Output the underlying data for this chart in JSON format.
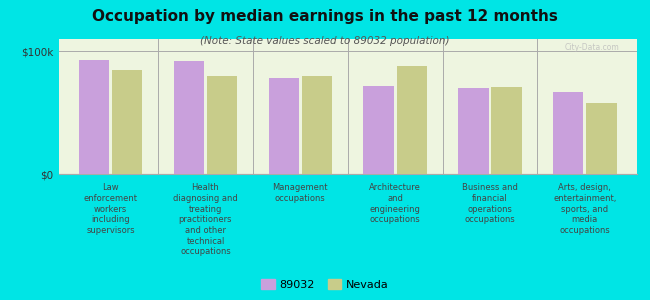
{
  "title": "Occupation by median earnings in the past 12 months",
  "subtitle": "(Note: State values scaled to 89032 population)",
  "categories": [
    "Law\nenforcement\nworkers\nincluding\nsupervisors",
    "Health\ndiagnosing and\ntreating\npractitioners\nand other\ntechnical\noccupations",
    "Management\noccupations",
    "Architecture\nand\nengineering\noccupations",
    "Business and\nfinancial\noperations\noccupations",
    "Arts, design,\nentertainment,\nsports, and\nmedia\noccupations"
  ],
  "values_89032": [
    93000,
    92000,
    78000,
    72000,
    70000,
    67000
  ],
  "values_nevada": [
    85000,
    80000,
    80000,
    88000,
    71000,
    58000
  ],
  "color_89032": "#c9a0dc",
  "color_nevada": "#c8cc8a",
  "legend_labels": [
    "89032",
    "Nevada"
  ],
  "background_color": "#00e5e5",
  "plot_bg_color": "#eef5e0",
  "ylim": [
    0,
    110000
  ],
  "ytick_labels": [
    "$0",
    "$100k"
  ],
  "watermark": "City-Data.com"
}
